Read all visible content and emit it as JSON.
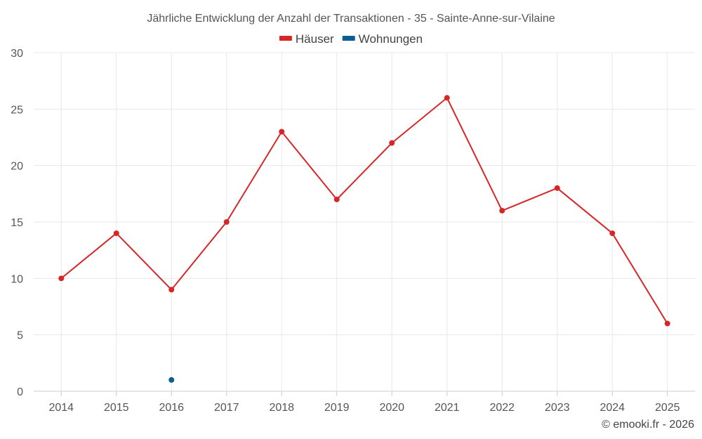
{
  "chart_data": {
    "type": "line",
    "title": "Jährliche Entwicklung der Anzahl der Transaktionen - 35 - Sainte-Anne-sur-Vilaine",
    "xlabel": "",
    "ylabel": "",
    "categories": [
      "2014",
      "2015",
      "2016",
      "2017",
      "2018",
      "2019",
      "2020",
      "2021",
      "2022",
      "2023",
      "2024",
      "2025"
    ],
    "ylim": [
      0,
      30
    ],
    "yticks": [
      0,
      5,
      10,
      15,
      20,
      25,
      30
    ],
    "grid": true,
    "legend_position": "top-center",
    "series": [
      {
        "name": "Häuser",
        "color": "#d62728",
        "values": [
          10,
          14,
          9,
          15,
          23,
          17,
          22,
          26,
          16,
          18,
          14,
          6
        ]
      },
      {
        "name": "Wohnungen",
        "color": "#0b5e94",
        "values": [
          null,
          null,
          1,
          null,
          null,
          null,
          null,
          null,
          null,
          null,
          null,
          null
        ]
      }
    ],
    "credit": "© emooki.fr - 2026"
  }
}
